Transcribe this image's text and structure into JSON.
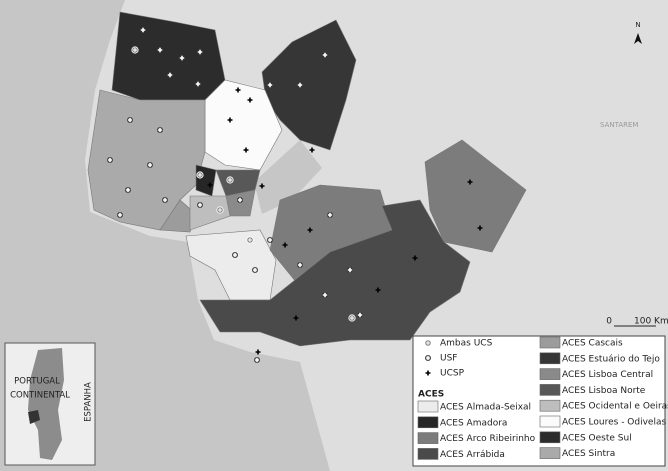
{
  "north": "N",
  "place": "SANTAREM",
  "scale": {
    "zero": "0",
    "label": "100 Km"
  },
  "inset": {
    "country_line1": "PORTUGAL",
    "country_line2": "CONTINENTAL",
    "neighbor": "ESPANHA"
  },
  "legend": {
    "symbols": [
      {
        "label": "Ambas UCS"
      },
      {
        "label": "USF"
      },
      {
        "label": "UCSP"
      }
    ],
    "aces_title": "ACES",
    "aces": [
      {
        "label": "ACES Almada-Seixal",
        "color": "#ececec"
      },
      {
        "label": "ACES Amadora",
        "color": "#262626"
      },
      {
        "label": "ACES Arco Ribeirinho",
        "color": "#7c7c7c"
      },
      {
        "label": "ACES Arrábida",
        "color": "#4a4a4a"
      },
      {
        "label": "ACES Cascais",
        "color": "#9c9c9c"
      },
      {
        "label": "ACES Estuário do Tejo",
        "color": "#363636"
      },
      {
        "label": "ACES Lisboa Central",
        "color": "#8a8a8a"
      },
      {
        "label": "ACES Lisboa Norte",
        "color": "#585858"
      },
      {
        "label": "ACES Ocidental e Oeiras",
        "color": "#bebebe"
      },
      {
        "label": "ACES Loures - Odivelas",
        "color": "#fbfbfb"
      },
      {
        "label": "ACES Oeste Sul",
        "color": "#2c2c2c"
      },
      {
        "label": "ACES Sintra",
        "color": "#aaaaaa"
      }
    ]
  }
}
